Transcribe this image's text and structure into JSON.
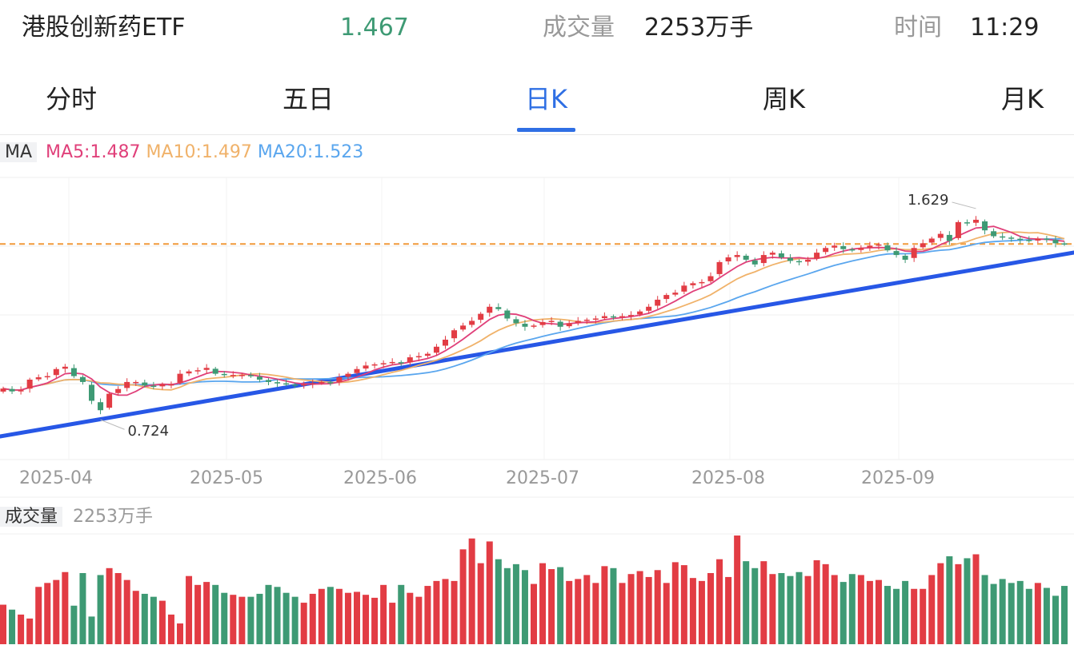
{
  "header": {
    "name": "港股创新药ETF",
    "price": "1.467",
    "volume_label": "成交量",
    "volume_value": "2253万手",
    "time_label": "时间",
    "time_value": "11:29"
  },
  "tabs": [
    {
      "label": "分时",
      "active": false
    },
    {
      "label": "五日",
      "active": false
    },
    {
      "label": "日K",
      "active": true
    },
    {
      "label": "周K",
      "active": false
    },
    {
      "label": "月K",
      "active": false
    }
  ],
  "ma_legend": {
    "tag": "MA",
    "ma5": "MA5:1.487",
    "ma10": "MA10:1.497",
    "ma20": "MA20:1.523"
  },
  "volume_legend": {
    "tag": "成交量",
    "value": "2253万手"
  },
  "colors": {
    "up": "#e23c44",
    "down": "#3e9a74",
    "ma5": "#e0407a",
    "ma10": "#f0b26a",
    "ma20": "#5aa6ee",
    "trendline": "#2757e6",
    "price_line": "#f19a3a",
    "accent": "#2f6fe4"
  },
  "chart_data": {
    "type": "candlestick",
    "x_ticks": [
      "2025-04",
      "2025-05",
      "2025-06",
      "2025-07",
      "2025-08",
      "2025-09"
    ],
    "annotations": {
      "high": "1.629",
      "low": "0.724"
    },
    "current_price": 1.467,
    "close": [
      0.852,
      0.84,
      0.845,
      0.89,
      0.9,
      0.905,
      0.935,
      0.945,
      0.905,
      0.88,
      0.8,
      0.76,
      0.83,
      0.85,
      0.88,
      0.88,
      0.865,
      0.86,
      0.87,
      0.87,
      0.915,
      0.925,
      0.93,
      0.94,
      0.915,
      0.91,
      0.91,
      0.91,
      0.905,
      0.89,
      0.88,
      0.875,
      0.87,
      0.865,
      0.87,
      0.875,
      0.88,
      0.875,
      0.9,
      0.915,
      0.935,
      0.95,
      0.955,
      0.96,
      0.965,
      0.96,
      0.985,
      0.99,
      1.0,
      1.03,
      1.06,
      1.1,
      1.12,
      1.14,
      1.17,
      1.2,
      1.19,
      1.15,
      1.13,
      1.115,
      1.12,
      1.135,
      1.14,
      1.115,
      1.13,
      1.14,
      1.145,
      1.15,
      1.16,
      1.155,
      1.16,
      1.165,
      1.18,
      1.2,
      1.23,
      1.25,
      1.26,
      1.29,
      1.3,
      1.305,
      1.33,
      1.39,
      1.41,
      1.42,
      1.4,
      1.38,
      1.42,
      1.43,
      1.41,
      1.395,
      1.39,
      1.4,
      1.43,
      1.45,
      1.46,
      1.445,
      1.44,
      1.45,
      1.46,
      1.465,
      1.44,
      1.42,
      1.4,
      1.45,
      1.47,
      1.49,
      1.51,
      1.48,
      1.56,
      1.555,
      1.57,
      1.525,
      1.5,
      1.495,
      1.49,
      1.485,
      1.48,
      1.49,
      1.487,
      1.47,
      1.467
    ],
    "volume": [
      400,
      350,
      300,
      260,
      580,
      620,
      650,
      730,
      390,
      720,
      280,
      700,
      770,
      720,
      650,
      540,
      510,
      480,
      440,
      300,
      210,
      690,
      600,
      630,
      600,
      520,
      500,
      480,
      480,
      510,
      600,
      580,
      520,
      480,
      420,
      510,
      560,
      580,
      560,
      520,
      530,
      500,
      470,
      600,
      420,
      600,
      520,
      480,
      590,
      640,
      660,
      640,
      960,
      1070,
      820,
      1040,
      860,
      770,
      810,
      750,
      610,
      820,
      760,
      780,
      640,
      660,
      700,
      620,
      790,
      770,
      620,
      710,
      740,
      680,
      750,
      620,
      830,
      800,
      670,
      640,
      720,
      860,
      680,
      1100,
      840,
      770,
      840,
      710,
      720,
      690,
      730,
      690,
      850,
      810,
      700,
      630,
      710,
      700,
      640,
      650,
      590,
      560,
      640,
      560,
      560,
      700,
      820,
      890,
      810,
      870,
      910,
      700,
      610,
      660,
      620,
      640,
      560,
      620,
      570,
      490,
      590
    ]
  }
}
